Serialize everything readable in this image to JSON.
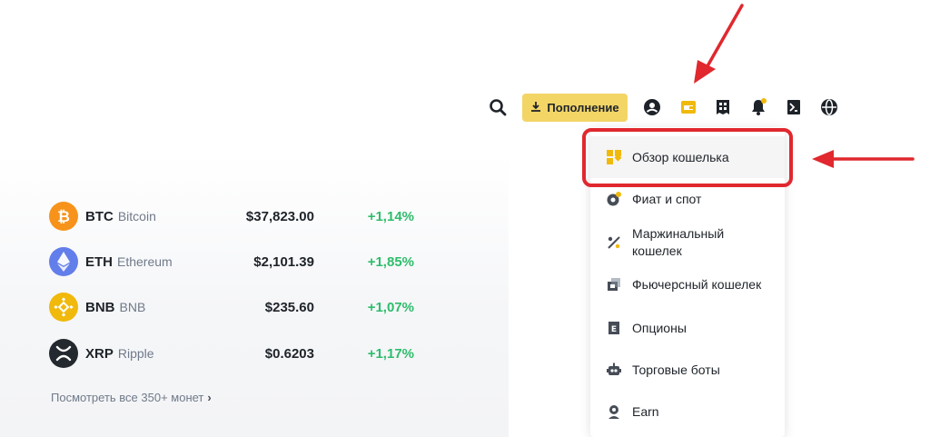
{
  "coins": [
    {
      "symbol": "BTC",
      "name": "Bitcoin",
      "price": "$37,823.00",
      "change": "+1,14%",
      "color": "#f7931a",
      "icon": "bitcoin-icon"
    },
    {
      "symbol": "ETH",
      "name": "Ethereum",
      "price": "$2,101.39",
      "change": "+1,85%",
      "color": "#627eea",
      "icon": "ethereum-icon"
    },
    {
      "symbol": "BNB",
      "name": "BNB",
      "price": "$235.60",
      "change": "+1,07%",
      "color": "#f0b90b",
      "icon": "bnb-icon"
    },
    {
      "symbol": "XRP",
      "name": "Ripple",
      "price": "$0.6203",
      "change": "+1,17%",
      "color": "#23292f",
      "icon": "xrp-icon"
    }
  ],
  "view_all": "Посмотреть все 350+ монет",
  "topbar": {
    "deposit_label": "Пополнение",
    "icons": [
      "search-icon",
      "download-icon",
      "account-icon",
      "wallet-icon",
      "orders-icon",
      "notification-icon",
      "download-app-icon",
      "language-icon"
    ]
  },
  "wallet_menu": {
    "items": [
      {
        "label": "Обзор кошелька",
        "icon": "wallet-overview-icon",
        "active": true
      },
      {
        "label": "Фиат и спот",
        "icon": "fiat-spot-icon"
      },
      {
        "label_line1": "Маржинальный",
        "label_line2": "кошелек",
        "icon": "margin-icon"
      },
      {
        "label": "Фьючерсный кошелек",
        "icon": "futures-icon"
      },
      {
        "label": "Опционы",
        "icon": "options-icon"
      },
      {
        "label": "Торговые боты",
        "icon": "trading-bots-icon"
      },
      {
        "label": "Earn",
        "icon": "earn-icon"
      }
    ]
  },
  "colors": {
    "accent": "#f0b90b",
    "positive": "#2ebd6b",
    "annotation": "#e0282e"
  }
}
